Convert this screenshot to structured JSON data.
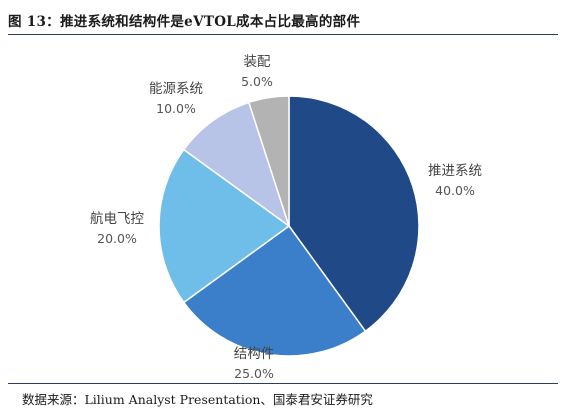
{
  "figure": {
    "title": "图 13：推进系统和结构件是eVTOL成本占比最高的部件",
    "source": "数据来源：Lilium Analyst Presentation、国泰君安证券研究"
  },
  "chart_data": {
    "type": "pie",
    "start": "12 o'clock",
    "direction": "clockwise",
    "slices": [
      {
        "label": "推进系统",
        "value": 40.0,
        "value_label": "40.0%",
        "color": "#1f4a87"
      },
      {
        "label": "结构件",
        "value": 25.0,
        "value_label": "25.0%",
        "color": "#3b7ec9"
      },
      {
        "label": "航电飞控",
        "value": 20.0,
        "value_label": "20.0%",
        "color": "#6fbde9"
      },
      {
        "label": "能源系统",
        "value": 10.0,
        "value_label": "10.0%",
        "color": "#b8c3e8"
      },
      {
        "label": "装配",
        "value": 5.0,
        "value_label": "5.0%",
        "color": "#b3b3b3"
      }
    ]
  }
}
